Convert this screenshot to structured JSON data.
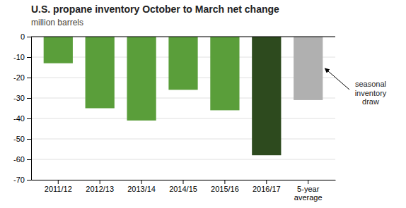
{
  "chart_data": {
    "type": "bar",
    "title": "U.S. propane inventory October to March net change",
    "subtitle": "million barrels",
    "categories": [
      "2011/12",
      "2012/13",
      "2013/14",
      "2014/15",
      "2015/16",
      "2016/17",
      "5-year\naverage"
    ],
    "values": [
      -13,
      -35,
      -41,
      -26,
      -36,
      -58,
      -31
    ],
    "colors": [
      "#5a9e3a",
      "#5a9e3a",
      "#5a9e3a",
      "#5a9e3a",
      "#5a9e3a",
      "#2d4a1e",
      "#b0b0b0"
    ],
    "ylim": [
      -70,
      0
    ],
    "yticks": [
      0,
      -10,
      -20,
      -30,
      -40,
      -50,
      -60,
      -70
    ],
    "grid": true,
    "annotation": "seasonal\ninventory\ndraw"
  }
}
